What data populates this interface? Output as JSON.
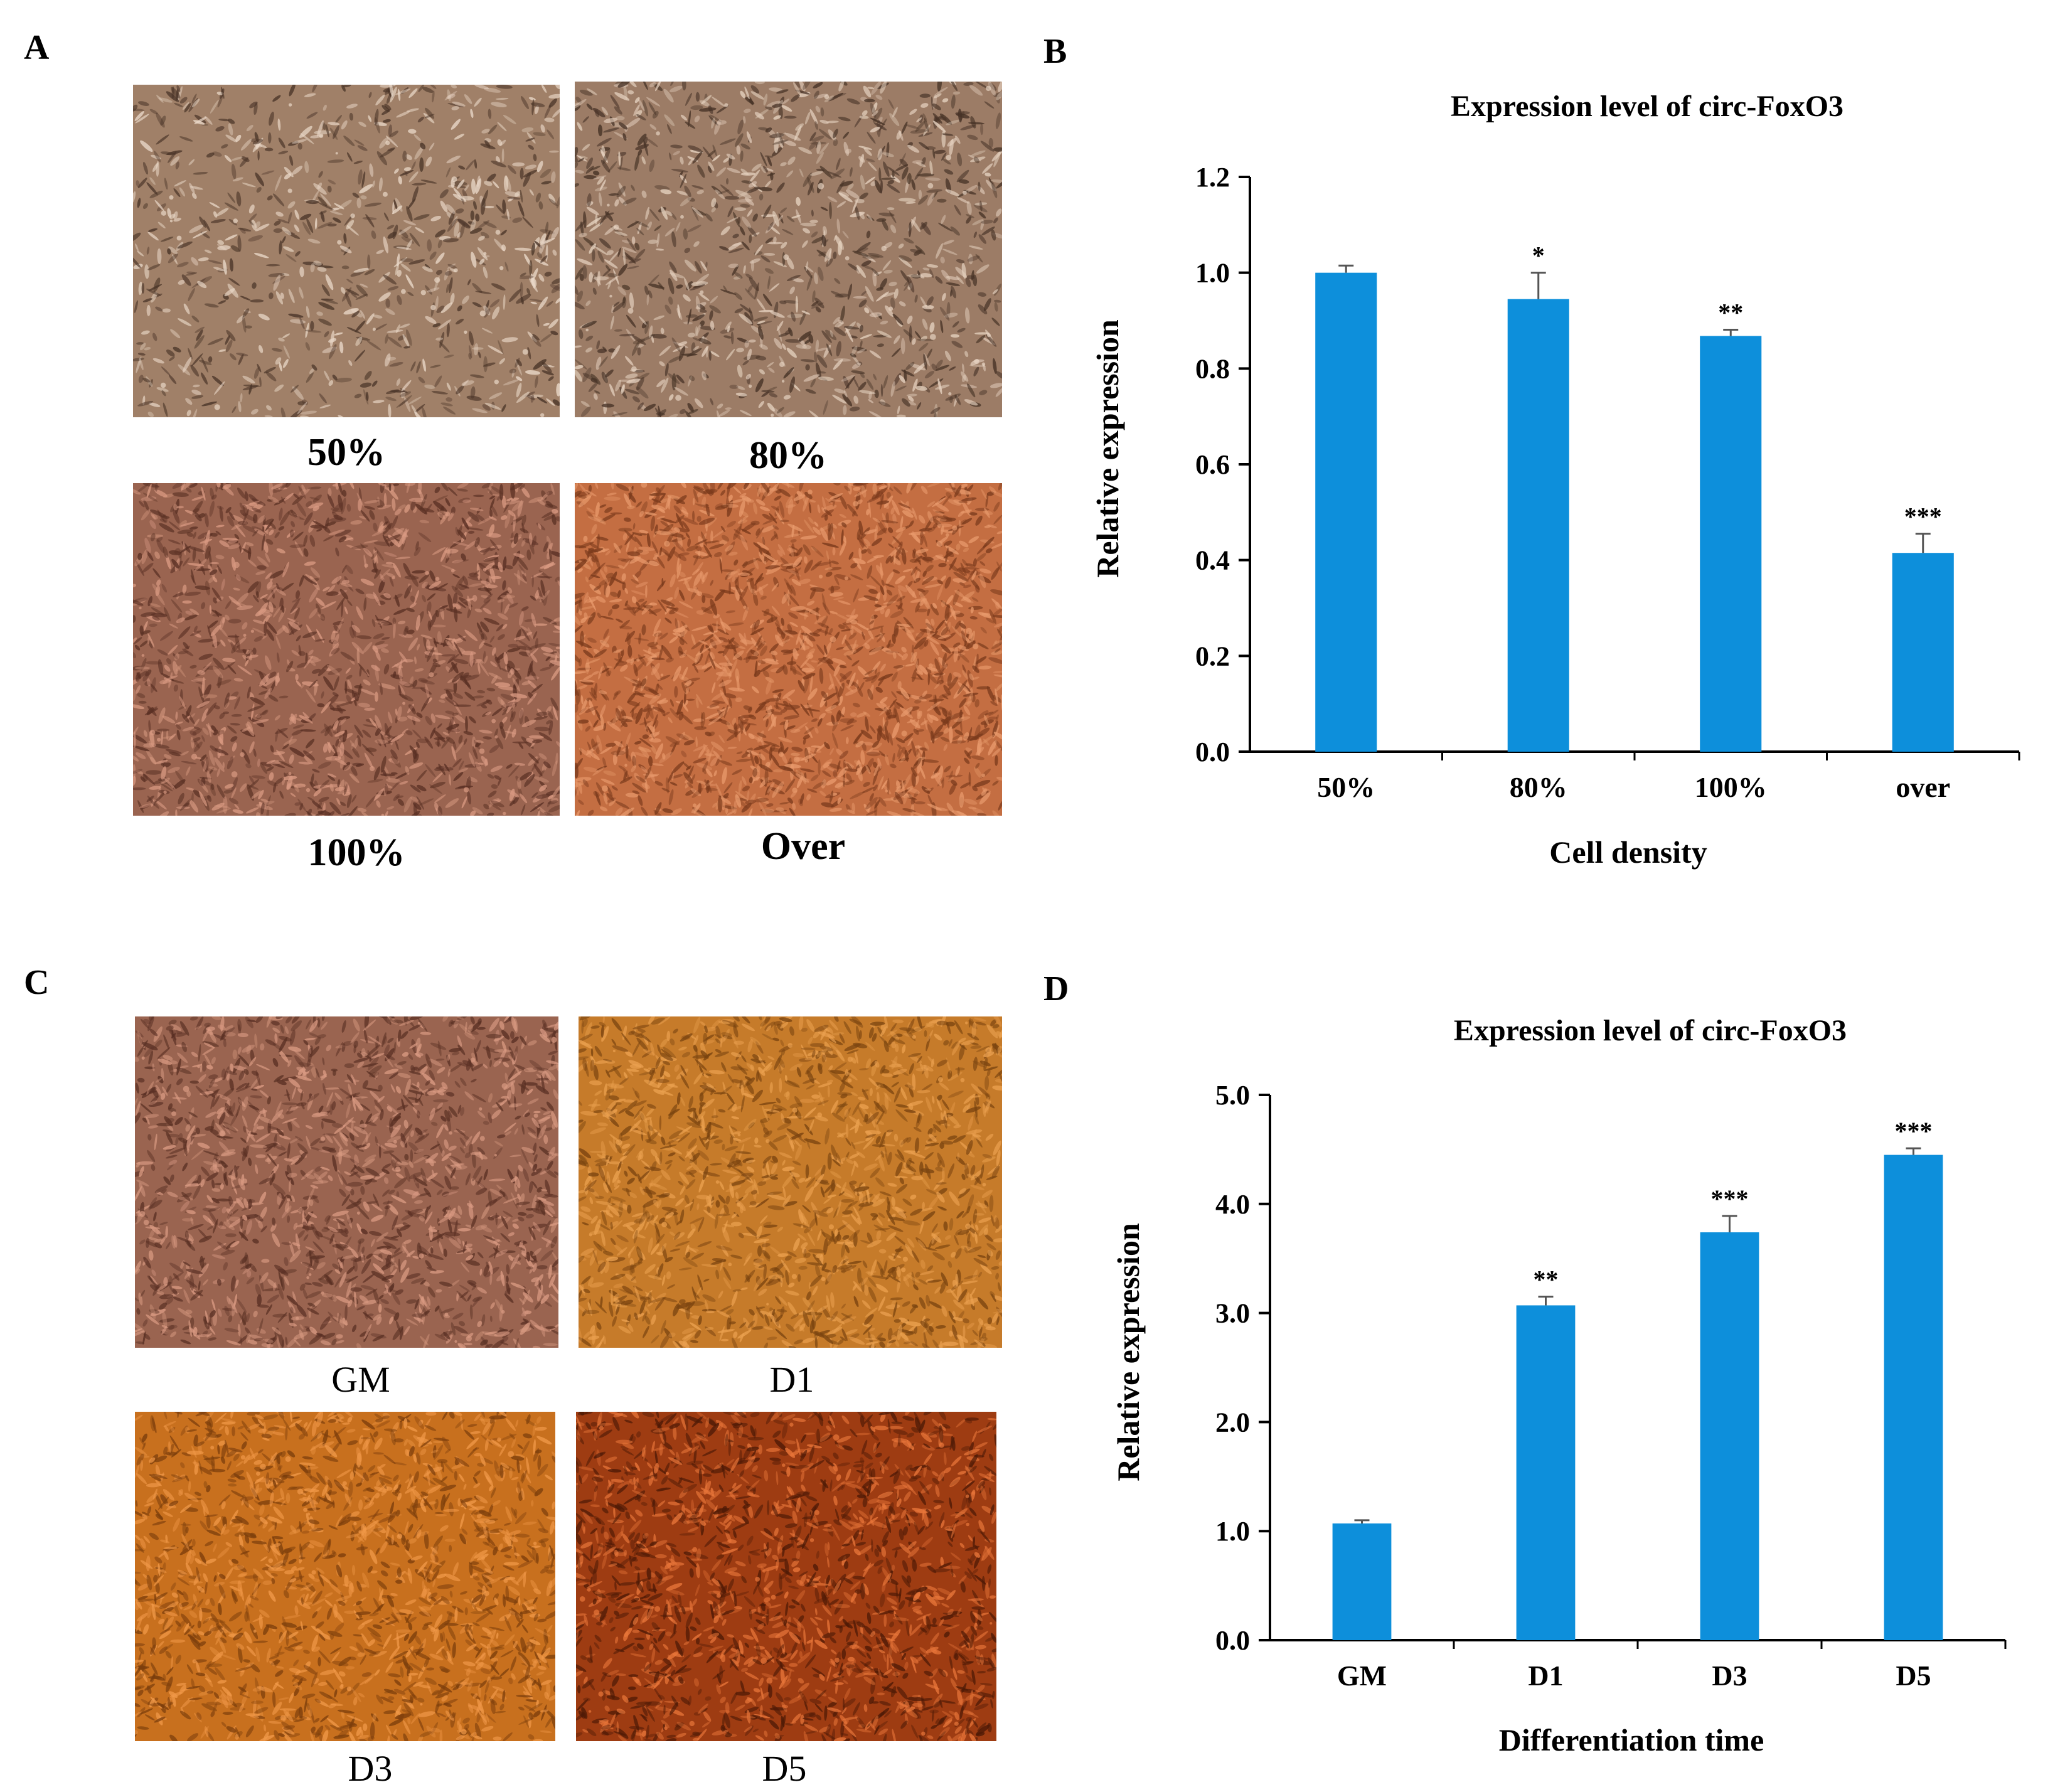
{
  "panels": {
    "a": {
      "letter": "A",
      "images": [
        {
          "label": "50%",
          "bg": "#a08068",
          "tint": "#ead8c8",
          "shade": "#4a3428",
          "density": "low"
        },
        {
          "label": "80%",
          "bg": "#9c7c66",
          "tint": "#e6d2c0",
          "shade": "#463226",
          "density": "mid"
        },
        {
          "label": "100%",
          "bg": "#9a6450",
          "tint": "#d99a82",
          "shade": "#5a3024",
          "density": "high"
        },
        {
          "label": "Over",
          "bg": "#c46e42",
          "tint": "#e89a6c",
          "shade": "#7a3a1c",
          "density": "very-high"
        }
      ]
    },
    "b": {
      "letter": "B"
    },
    "c": {
      "letter": "C",
      "images": [
        {
          "label": "GM",
          "bg": "#9a6450",
          "tint": "#d99a82",
          "shade": "#5a3024",
          "density": "high"
        },
        {
          "label": "D1",
          "bg": "#c67b2a",
          "tint": "#eba150",
          "shade": "#7a4410",
          "density": "high"
        },
        {
          "label": "D3",
          "bg": "#c8701e",
          "tint": "#f09848",
          "shade": "#7c3e0c",
          "density": "high"
        },
        {
          "label": "D5",
          "bg": "#9e3c12",
          "tint": "#e8763a",
          "shade": "#4e1a06",
          "density": "high"
        }
      ]
    },
    "d": {
      "letter": "D"
    }
  },
  "chart_data": [
    {
      "type": "bar",
      "panel": "B",
      "title": "Expression level of circ-FoxO3",
      "xlabel": "Cell density",
      "ylabel": "Relative expression",
      "categories": [
        "50%",
        "80%",
        "100%",
        "over"
      ],
      "values": [
        1.0,
        0.945,
        0.868,
        0.415
      ],
      "errors": [
        0.015,
        0.055,
        0.013,
        0.04
      ],
      "significance": [
        "",
        "*",
        "**",
        "***"
      ],
      "ylim": [
        0,
        1.2
      ],
      "yticks": [
        "0.0",
        "0.2",
        "0.4",
        "0.6",
        "0.8",
        "1.0",
        "1.2"
      ],
      "bar_color": "#0d8fdb"
    },
    {
      "type": "bar",
      "panel": "D",
      "title": "Expression level of circ-FoxO3",
      "xlabel": "Differentiation time",
      "ylabel": "Relative expression",
      "categories": [
        "GM",
        "D1",
        "D3",
        "D5"
      ],
      "values": [
        1.07,
        3.07,
        3.74,
        4.45
      ],
      "errors": [
        0.03,
        0.08,
        0.15,
        0.06
      ],
      "significance": [
        "",
        "**",
        "***",
        "***"
      ],
      "ylim": [
        0,
        5.0
      ],
      "yticks": [
        "0.0",
        "1.0",
        "2.0",
        "3.0",
        "4.0",
        "5.0"
      ],
      "bar_color": "#0d8fdb"
    }
  ]
}
